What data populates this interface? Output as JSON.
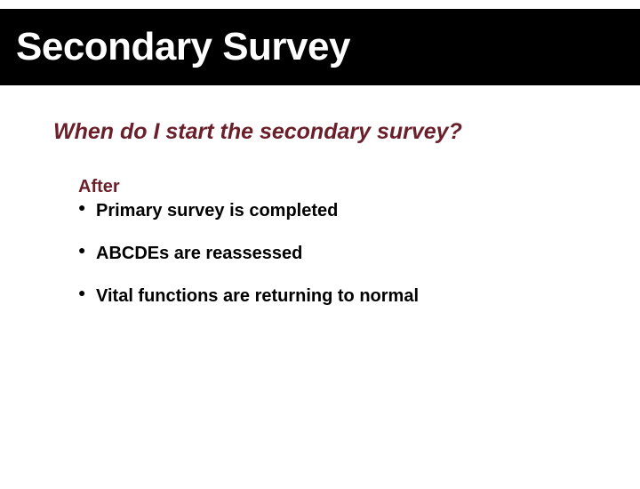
{
  "colors": {
    "title_bg": "#000000",
    "title_fg": "#ffffff",
    "question_color": "#6b1f2a",
    "after_color": "#6b1f2a",
    "bullet_color": "#000000",
    "body_bg": "#ffffff"
  },
  "typography": {
    "title_fontsize": 44,
    "question_fontsize": 25,
    "body_fontsize": 20,
    "font_family": "Arial, Helvetica, sans-serif"
  },
  "title": "Secondary Survey",
  "question": "When do I start the secondary survey?",
  "after_label": "After",
  "bullets": [
    "Primary survey is completed",
    "ABCDEs are reassessed",
    "Vital functions are returning to normal"
  ]
}
